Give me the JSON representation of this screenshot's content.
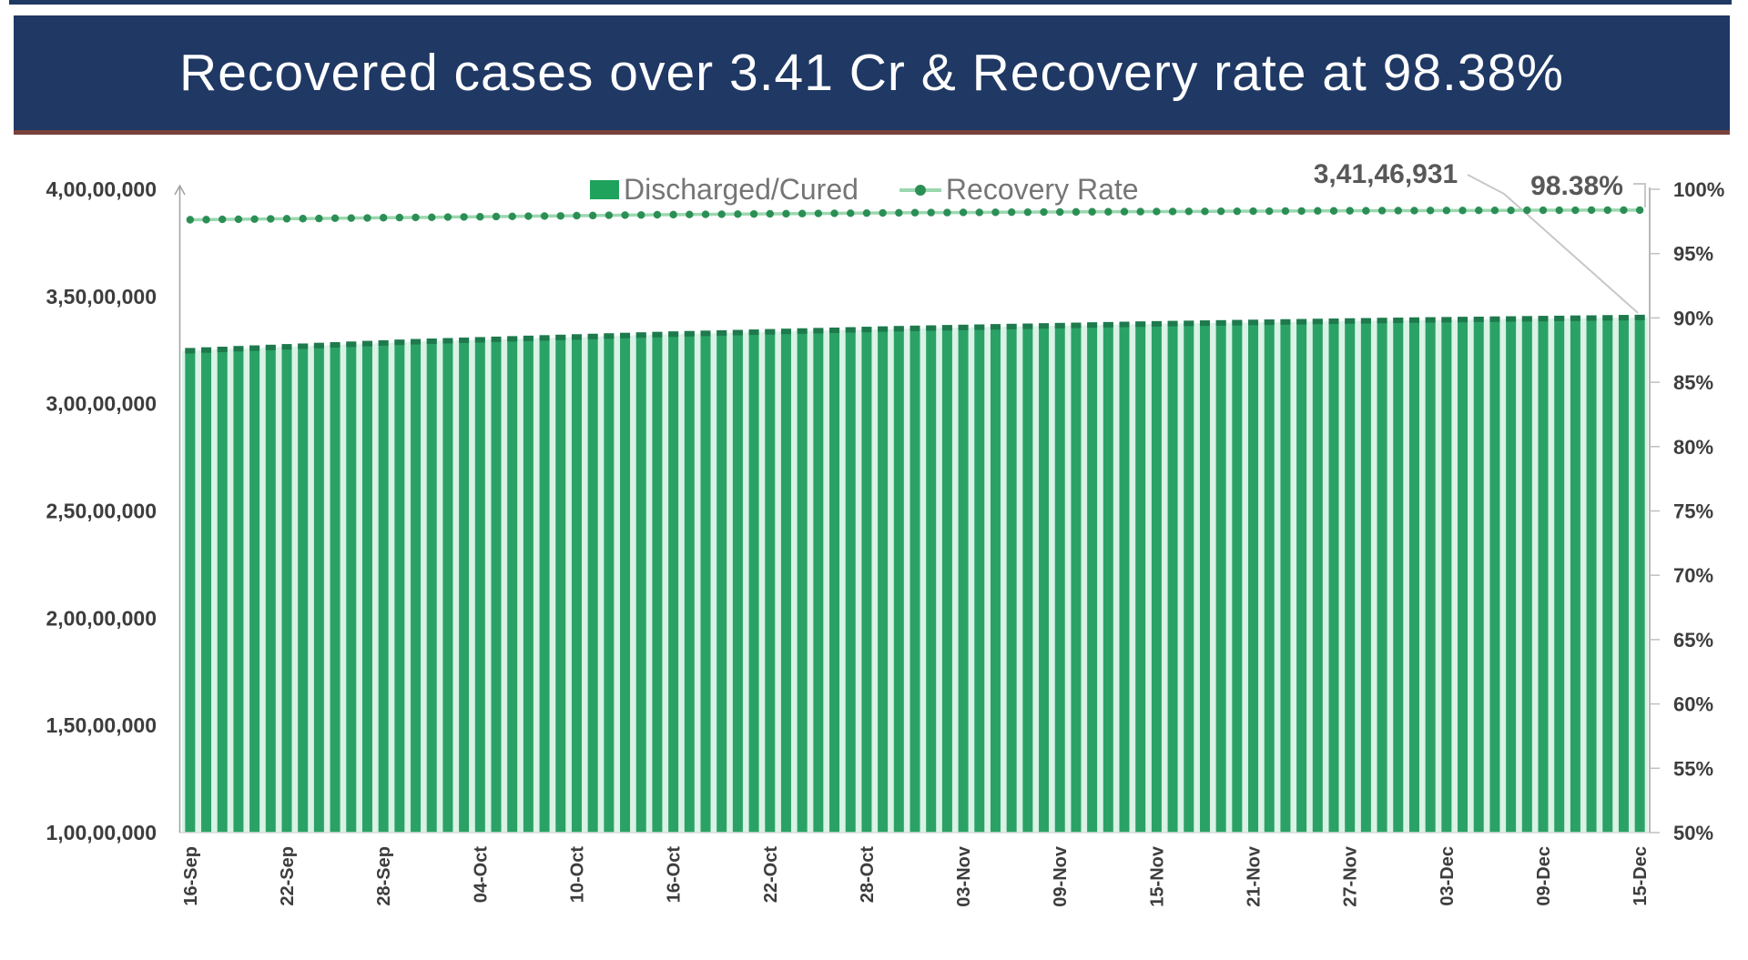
{
  "title": "Recovered cases over 3.41 Cr & Recovery rate at 98.38%",
  "legend": {
    "bars": "Discharged/Cured",
    "line": "Recovery Rate"
  },
  "annotations": {
    "total": "3,41,46,931",
    "rate": "98.38%"
  },
  "colors": {
    "banner_bg": "#1f3864",
    "banner_underline": "#7a413b",
    "title_text": "#ffffff",
    "bar": "#2aa266",
    "bar_cap": "#1e7a4d",
    "bar_gap": "#d9f2e5",
    "line": "#9bd8af",
    "marker": "#2b8f55",
    "legend_swatch": "#1fa35c",
    "legend_text": "#757575",
    "axis_text": "#3d3d3d",
    "annotation_text": "#585858",
    "axis_line": "#a0a0a0",
    "leader": "#c8c8c8",
    "tick": "#c0c0c0",
    "baseline": "#dcdcdc"
  },
  "chart_data": {
    "type": "bar",
    "title": "Recovered cases over 3.41 Cr & Recovery rate at 98.38%",
    "xlabel": "",
    "ylabel": "",
    "grid": false,
    "legend_position": "top-center",
    "x_tick_labels": [
      "16-Sep",
      "22-Sep",
      "28-Sep",
      "04-Oct",
      "10-Oct",
      "16-Oct",
      "22-Oct",
      "28-Oct",
      "03-Nov",
      "09-Nov",
      "15-Nov",
      "21-Nov",
      "27-Nov",
      "03-Dec",
      "09-Dec",
      "15-Dec"
    ],
    "x_tick_indices": [
      0,
      6,
      12,
      18,
      24,
      30,
      36,
      42,
      48,
      54,
      60,
      66,
      72,
      78,
      84,
      90
    ],
    "dates": [
      "16-Sep",
      "17-Sep",
      "18-Sep",
      "19-Sep",
      "20-Sep",
      "21-Sep",
      "22-Sep",
      "23-Sep",
      "24-Sep",
      "25-Sep",
      "26-Sep",
      "27-Sep",
      "28-Sep",
      "29-Sep",
      "30-Sep",
      "01-Oct",
      "02-Oct",
      "03-Oct",
      "04-Oct",
      "05-Oct",
      "06-Oct",
      "07-Oct",
      "08-Oct",
      "09-Oct",
      "10-Oct",
      "11-Oct",
      "12-Oct",
      "13-Oct",
      "14-Oct",
      "15-Oct",
      "16-Oct",
      "17-Oct",
      "18-Oct",
      "19-Oct",
      "20-Oct",
      "21-Oct",
      "22-Oct",
      "23-Oct",
      "24-Oct",
      "25-Oct",
      "26-Oct",
      "27-Oct",
      "28-Oct",
      "29-Oct",
      "30-Oct",
      "31-Oct",
      "01-Nov",
      "02-Nov",
      "03-Nov",
      "04-Nov",
      "05-Nov",
      "06-Nov",
      "07-Nov",
      "08-Nov",
      "09-Nov",
      "10-Nov",
      "11-Nov",
      "12-Nov",
      "13-Nov",
      "14-Nov",
      "15-Nov",
      "16-Nov",
      "17-Nov",
      "18-Nov",
      "19-Nov",
      "20-Nov",
      "21-Nov",
      "22-Nov",
      "23-Nov",
      "24-Nov",
      "25-Nov",
      "26-Nov",
      "27-Nov",
      "28-Nov",
      "29-Nov",
      "30-Nov",
      "01-Dec",
      "02-Dec",
      "03-Dec",
      "04-Dec",
      "05-Dec",
      "06-Dec",
      "07-Dec",
      "08-Dec",
      "09-Dec",
      "10-Dec",
      "11-Dec",
      "12-Dec",
      "13-Dec",
      "14-Dec",
      "15-Dec"
    ],
    "left_axis": {
      "min": 10000000,
      "max": 40000000,
      "tick_labels": [
        "4,00,00,000",
        "3,50,00,000",
        "3,00,00,000",
        "2,50,00,000",
        "2,00,00,000",
        "1,50,00,000",
        "1,00,00,000"
      ],
      "tick_values": [
        40000000,
        35000000,
        30000000,
        25000000,
        20000000,
        15000000,
        10000000
      ]
    },
    "right_axis": {
      "min": 50,
      "max": 100,
      "tick_labels": [
        "100%",
        "95%",
        "90%",
        "85%",
        "80%",
        "75%",
        "70%",
        "65%",
        "60%",
        "55%",
        "50%"
      ],
      "tick_values": [
        100,
        95,
        90,
        85,
        80,
        75,
        70,
        65,
        60,
        55,
        50
      ]
    },
    "series": [
      {
        "name": "Discharged/Cured",
        "type": "bar",
        "axis": "left",
        "values": [
          32598424,
          32628424,
          32658424,
          32688424,
          32718424,
          32748424,
          32778424,
          32808424,
          32838424,
          32868424,
          32898424,
          32928424,
          32958424,
          32988424,
          33018424,
          33040424,
          33062424,
          33084424,
          33106424,
          33128424,
          33150424,
          33172424,
          33194424,
          33216424,
          33238424,
          33260424,
          33282424,
          33304424,
          33326424,
          33348424,
          33370424,
          33388424,
          33406424,
          33424424,
          33442424,
          33460424,
          33478424,
          33496424,
          33514424,
          33532424,
          33550424,
          33568424,
          33586424,
          33604424,
          33622424,
          33640424,
          33654424,
          33668424,
          33682424,
          33696424,
          33710424,
          33724424,
          33738424,
          33752424,
          33766424,
          33780424,
          33794424,
          33808424,
          33822424,
          33836424,
          33850424,
          33861424,
          33872424,
          33883424,
          33894424,
          33905424,
          33916424,
          33927424,
          33938424,
          33949424,
          33960424,
          33971424,
          33982424,
          33993424,
          34004424,
          34015424,
          34024191,
          34032958,
          34041725,
          34050492,
          34059259,
          34068026,
          34076793,
          34085560,
          34094327,
          34103094,
          34111861,
          34120628,
          34129395,
          34138162,
          34146931
        ]
      },
      {
        "name": "Recovery Rate",
        "type": "line",
        "axis": "right",
        "values": [
          97.63,
          97.64,
          97.66,
          97.67,
          97.68,
          97.7,
          97.71,
          97.72,
          97.73,
          97.75,
          97.76,
          97.77,
          97.79,
          97.8,
          97.81,
          97.82,
          97.84,
          97.85,
          97.86,
          97.88,
          97.89,
          97.91,
          97.92,
          97.93,
          97.95,
          97.96,
          97.98,
          97.99,
          98.0,
          98.02,
          98.03,
          98.04,
          98.05,
          98.06,
          98.07,
          98.08,
          98.09,
          98.1,
          98.11,
          98.12,
          98.13,
          98.14,
          98.15,
          98.16,
          98.17,
          98.18,
          98.19,
          98.19,
          98.2,
          98.2,
          98.21,
          98.22,
          98.22,
          98.23,
          98.23,
          98.24,
          98.25,
          98.25,
          98.26,
          98.26,
          98.27,
          98.27,
          98.28,
          98.28,
          98.29,
          98.29,
          98.3,
          98.3,
          98.31,
          98.31,
          98.32,
          98.32,
          98.33,
          98.33,
          98.34,
          98.34,
          98.34,
          98.35,
          98.35,
          98.35,
          98.36,
          98.36,
          98.36,
          98.37,
          98.37,
          98.37,
          98.37,
          98.38,
          98.38,
          98.38,
          98.38
        ]
      }
    ],
    "final_values": {
      "discharged_cured": "3,41,46,931",
      "recovery_rate": "98.38%"
    }
  }
}
